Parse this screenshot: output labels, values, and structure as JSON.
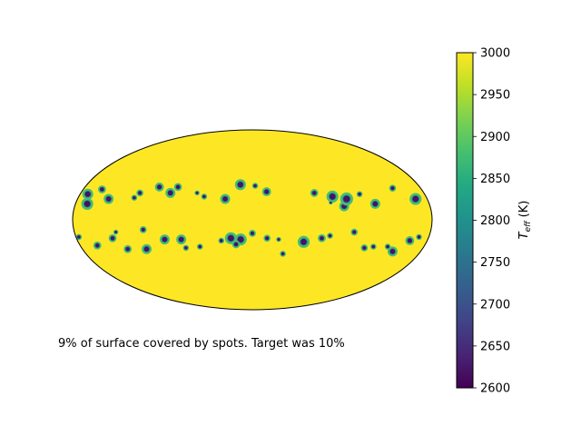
{
  "chart_data": {
    "type": "heatmap",
    "projection": "mollweide",
    "background_value": 3000,
    "colormap": "viridis",
    "colorbar": {
      "label_base": "T",
      "label_sub": "eff",
      "label_unit": "(K)",
      "min": 2600,
      "max": 3000,
      "ticks": [
        2600,
        2650,
        2700,
        2750,
        2800,
        2850,
        2900,
        2950,
        3000
      ]
    },
    "caption": "9% of surface covered by spots. Target was 10%",
    "spot_umbra_value": 2620,
    "spot_penumbra_value": 2880,
    "spots": [
      {
        "lon": -172,
        "lat": 21,
        "r": 5.5
      },
      {
        "lon": -168,
        "lat": 13,
        "r": 6
      },
      {
        "lon": -160,
        "lat": 25,
        "r": 4
      },
      {
        "lon": -148,
        "lat": 17,
        "r": 5
      },
      {
        "lon": -118,
        "lat": 22,
        "r": 3.5
      },
      {
        "lon": -122,
        "lat": 18,
        "r": 3
      },
      {
        "lon": -100,
        "lat": 27,
        "r": 4.5
      },
      {
        "lon": -86,
        "lat": 22,
        "r": 5
      },
      {
        "lon": -80,
        "lat": 27,
        "r": 4
      },
      {
        "lon": -58,
        "lat": 22,
        "r": 2.5
      },
      {
        "lon": -50,
        "lat": 19,
        "r": 3
      },
      {
        "lon": -28,
        "lat": 17,
        "r": 5
      },
      {
        "lon": -13,
        "lat": 29,
        "r": 5.5
      },
      {
        "lon": 3,
        "lat": 28,
        "r": 3
      },
      {
        "lon": 15,
        "lat": 23,
        "r": 4.5
      },
      {
        "lon": 65,
        "lat": 22,
        "r": 4
      },
      {
        "lon": 83,
        "lat": 19,
        "r": 6
      },
      {
        "lon": 93,
        "lat": 11,
        "r": 5
      },
      {
        "lon": 97,
        "lat": 17,
        "r": 6.5
      },
      {
        "lon": 112,
        "lat": 21,
        "r": 3
      },
      {
        "lon": 125,
        "lat": 13,
        "r": 5
      },
      {
        "lon": 150,
        "lat": 26,
        "r": 3.5
      },
      {
        "lon": 168,
        "lat": 17,
        "r": 6
      },
      {
        "lon": 80,
        "lat": 14,
        "r": 2
      },
      {
        "lon": -138,
        "lat": -10,
        "r": 2.5
      },
      {
        "lon": -143,
        "lat": -15,
        "r": 4
      },
      {
        "lon": -132,
        "lat": -24,
        "r": 4
      },
      {
        "lon": -110,
        "lat": -8,
        "r": 3.5
      },
      {
        "lon": -112,
        "lat": -24,
        "r": 5
      },
      {
        "lon": -90,
        "lat": -16,
        "r": 5
      },
      {
        "lon": -73,
        "lat": -16,
        "r": 5
      },
      {
        "lon": -70,
        "lat": -23,
        "r": 3
      },
      {
        "lon": -55,
        "lat": -22,
        "r": 3
      },
      {
        "lon": -32,
        "lat": -17,
        "r": 3
      },
      {
        "lon": -22,
        "lat": -15,
        "r": 6
      },
      {
        "lon": -12,
        "lat": -16,
        "r": 6
      },
      {
        "lon": -17,
        "lat": -20,
        "r": 4
      },
      {
        "lon": 0,
        "lat": -11,
        "r": 3.5
      },
      {
        "lon": 15,
        "lat": -15,
        "r": 3.5
      },
      {
        "lon": 27,
        "lat": -16,
        "r": 2.5
      },
      {
        "lon": 33,
        "lat": -28,
        "r": 3
      },
      {
        "lon": 53,
        "lat": -18,
        "r": 6
      },
      {
        "lon": 71,
        "lat": -15,
        "r": 4
      },
      {
        "lon": 79,
        "lat": -13,
        "r": 3
      },
      {
        "lon": 103,
        "lat": -10,
        "r": 3.5
      },
      {
        "lon": 118,
        "lat": -23,
        "r": 3.5
      },
      {
        "lon": 127,
        "lat": -22,
        "r": 3
      },
      {
        "lon": 142,
        "lat": -22,
        "r": 3
      },
      {
        "lon": 150,
        "lat": -26,
        "r": 5
      },
      {
        "lon": 162,
        "lat": -17,
        "r": 4.5
      },
      {
        "lon": 170,
        "lat": -14,
        "r": 3
      },
      {
        "lon": -177,
        "lat": -14,
        "r": 3
      },
      {
        "lon": -162,
        "lat": -21,
        "r": 4
      }
    ]
  }
}
